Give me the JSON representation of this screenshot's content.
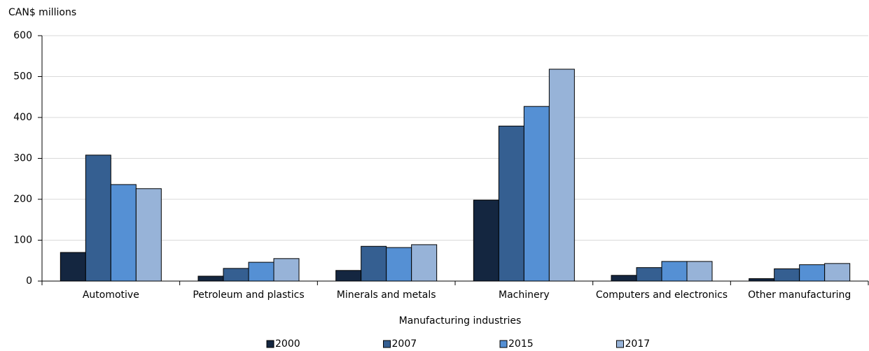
{
  "chart_data": {
    "type": "bar",
    "y_label": "CAN$ millions",
    "x_label": "Manufacturing industries",
    "categories": [
      "Automotive",
      "Petroleum and plastics",
      "Minerals and metals",
      "Machinery",
      "Computers and electronics",
      "Other manufacturing"
    ],
    "series": [
      {
        "name": "2000",
        "color": "#142640",
        "values": [
          70,
          12,
          26,
          198,
          14,
          6
        ]
      },
      {
        "name": "2007",
        "color": "#355f91",
        "values": [
          308,
          31,
          85,
          379,
          33,
          30
        ]
      },
      {
        "name": "2015",
        "color": "#5590d4",
        "values": [
          236,
          46,
          82,
          427,
          48,
          40
        ]
      },
      {
        "name": "2017",
        "color": "#97b3d8",
        "values": [
          226,
          55,
          89,
          518,
          48,
          43
        ]
      }
    ],
    "ylim": [
      0,
      600
    ],
    "yticks": [
      0,
      100,
      200,
      300,
      400,
      500,
      600
    ],
    "grid": true
  }
}
